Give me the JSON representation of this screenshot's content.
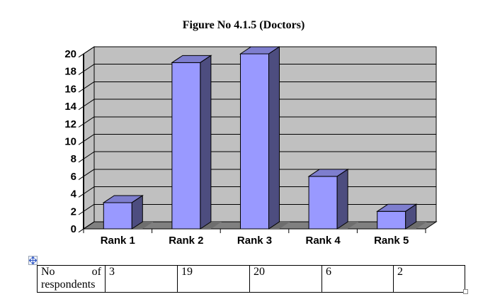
{
  "chart_data": {
    "type": "bar",
    "style": "3d-column",
    "title": "Figure No 4.1.5 (Doctors)",
    "categories": [
      "Rank 1",
      "Rank 2",
      "Rank 3",
      "Rank 4",
      "Rank 5"
    ],
    "values": [
      3,
      19,
      20,
      6,
      2
    ],
    "series_name": "No of respondents",
    "xlabel": "",
    "ylabel": "",
    "ylim": [
      0,
      20
    ],
    "ytick_step": 2,
    "grid": true,
    "legend": "none",
    "colors": {
      "bar_front": "#9999FF",
      "bar_top": "#7E7ECE",
      "bar_side": "#4D4D7F",
      "wall": "#C0C0C0",
      "floor": "#808080",
      "floor_shadow": "#6E6E6E",
      "gridline": "#000000",
      "axis": "#000000",
      "label": "#000000"
    }
  },
  "table": {
    "row_label": "No of respondents",
    "values": [
      "3",
      "19",
      "20",
      "6",
      "2"
    ]
  },
  "icons": {
    "move_handle": "four-direction-move-icon",
    "resize_handle": "table-resize-square"
  }
}
